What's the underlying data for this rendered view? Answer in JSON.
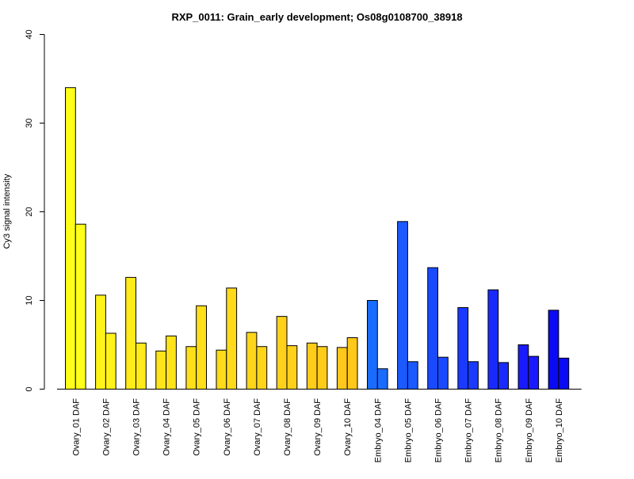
{
  "chart_data": {
    "type": "bar",
    "title": "RXP_0011: Grain_early development; Os08g0108700_38918",
    "xlabel": "",
    "ylabel": "Cy3 signal intensity",
    "ylim": [
      0,
      40
    ],
    "yticks": [
      0,
      10,
      20,
      30,
      40
    ],
    "grid": false,
    "legend": "none",
    "categories": [
      "Ovary_01 DAF",
      "Ovary_02 DAF",
      "Ovary_03 DAF",
      "Ovary_04 DAF",
      "Ovary_05 DAF",
      "Ovary_06 DAF",
      "Ovary_07 DAF",
      "Ovary_08 DAF",
      "Ovary_09 DAF",
      "Ovary_10 DAF",
      "Embryo_04 DAF",
      "Embryo_05 DAF",
      "Embryo_06 DAF",
      "Embryo_07 DAF",
      "Embryo_08 DAF",
      "Embryo_09 DAF",
      "Embryo_10 DAF"
    ],
    "series": [
      {
        "values": [
          34.0,
          10.6,
          12.6,
          4.3,
          4.8,
          4.4,
          6.4,
          8.2,
          5.2,
          4.7,
          10.0,
          18.9,
          13.7,
          9.2,
          11.2,
          5.0,
          8.9
        ]
      },
      {
        "values": [
          18.6,
          6.3,
          5.2,
          6.0,
          9.4,
          11.4,
          4.8,
          4.9,
          4.8,
          5.8,
          2.3,
          3.1,
          3.6,
          3.1,
          3.0,
          3.7,
          3.5
        ]
      }
    ],
    "colors": [
      "#FFFF1A",
      "#FFF41A",
      "#FFEA1A",
      "#FFE41A",
      "#FFDF1A",
      "#FFDA1A",
      "#FFD51A",
      "#FFD11A",
      "#FFCC1A",
      "#FFC81A",
      "#1A6BFF",
      "#1A5AFF",
      "#1A4AFF",
      "#1A3AFF",
      "#1A2AFF",
      "#1A1AFF",
      "#0A0AF5"
    ]
  }
}
